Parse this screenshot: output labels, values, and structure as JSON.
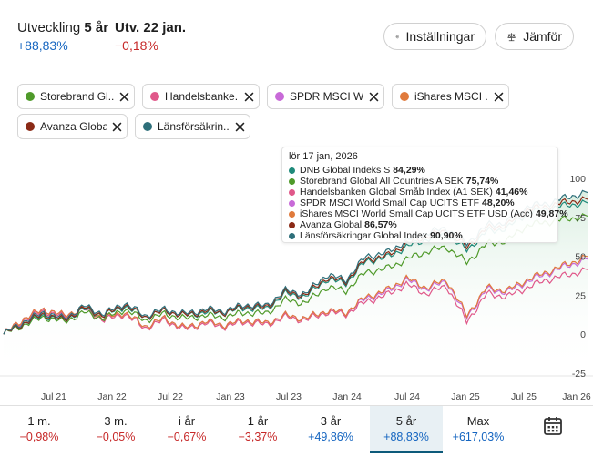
{
  "header": {
    "development_label": "Utveckling",
    "development_period": "5 år",
    "development_value": "+88,83%",
    "daily_label": "Utv. 22 jan.",
    "daily_value": "−0,18%",
    "settings_label": "Inställningar",
    "compare_label": "Jämför"
  },
  "chips": [
    {
      "label": "Storebrand Gl...",
      "color": "#4f9a2a"
    },
    {
      "label": "Handelsbanke...",
      "color": "#e0588a"
    },
    {
      "label": "SPDR MSCI W...",
      "color": "#c86ad8"
    },
    {
      "label": "iShares MSCI ...",
      "color": "#e07a3c"
    },
    {
      "label": "Avanza Global",
      "color": "#8b2a16"
    },
    {
      "label": "Länsförsäkrin...",
      "color": "#2e6f7a"
    }
  ],
  "tooltip": {
    "date": "lör 17 jan, 2026",
    "rows": [
      {
        "name": "DNB Global Indeks S",
        "value": "84,29%",
        "color": "#1f8a7a"
      },
      {
        "name": "Storebrand Global All Countries A SEK",
        "value": "75,74%",
        "color": "#4f9a2a"
      },
      {
        "name": "Handelsbanken Global Småb Index (A1 SEK)",
        "value": "41,46%",
        "color": "#e0588a"
      },
      {
        "name": "SPDR MSCI World Small Cap UCITS ETF",
        "value": "48,20%",
        "color": "#c86ad8"
      },
      {
        "name": "iShares MSCI World Small Cap UCITS ETF USD (Acc)",
        "value": "49,87%",
        "color": "#e07a3c"
      },
      {
        "name": "Avanza Global",
        "value": "86,57%",
        "color": "#8b2a16"
      },
      {
        "name": "Länsförsäkringar Global Index",
        "value": "90,90%",
        "color": "#2e6f7a"
      }
    ]
  },
  "chart_data": {
    "type": "line",
    "x_tick_labels": [
      "Jul 21",
      "Jan 22",
      "Jul 22",
      "Jan 23",
      "Jul 23",
      "Jan 24",
      "Jul 24",
      "Jan 25",
      "Jul 25",
      "Jan 26"
    ],
    "y_tick_labels": [
      "100",
      "75",
      "50",
      "25",
      "0",
      "-25"
    ],
    "ylim": [
      -25,
      100
    ],
    "series": [
      {
        "name": "Länsförsäkringar Global Index",
        "color": "#2e6f7a",
        "values": [
          0,
          8,
          14,
          10,
          18,
          13,
          20,
          12,
          16,
          13,
          16,
          15,
          19,
          18,
          28,
          26,
          38,
          35,
          50,
          52,
          60,
          65,
          68,
          58,
          70,
          72,
          82,
          84,
          88,
          90.9
        ]
      },
      {
        "name": "Avanza Global",
        "color": "#8b2a16",
        "values": [
          0,
          7,
          13,
          9,
          17,
          12,
          19,
          11,
          15,
          12,
          15,
          14,
          18,
          17,
          27,
          25,
          36,
          34,
          48,
          50,
          58,
          63,
          66,
          56,
          68,
          70,
          80,
          82,
          85,
          86.57
        ]
      },
      {
        "name": "DNB Global Indeks S",
        "color": "#1f8a7a",
        "values": [
          0,
          7,
          12,
          9,
          16,
          12,
          18,
          11,
          15,
          12,
          14,
          14,
          17,
          16,
          26,
          24,
          35,
          33,
          47,
          49,
          56,
          61,
          64,
          54,
          66,
          68,
          78,
          80,
          83,
          84.29
        ]
      },
      {
        "name": "Storebrand Global All Countries A SEK",
        "color": "#4f9a2a",
        "values": [
          0,
          6,
          11,
          8,
          14,
          10,
          16,
          9,
          13,
          10,
          12,
          11,
          14,
          13,
          22,
          20,
          30,
          28,
          40,
          42,
          48,
          53,
          56,
          46,
          58,
          60,
          70,
          72,
          74,
          75.74
        ]
      },
      {
        "name": "iShares MSCI World Small Cap UCITS ETF USD (Acc)",
        "color": "#e07a3c",
        "values": [
          0,
          10,
          16,
          12,
          17,
          10,
          14,
          5,
          10,
          4,
          8,
          6,
          9,
          7,
          12,
          10,
          15,
          14,
          24,
          28,
          36,
          30,
          35,
          12,
          30,
          28,
          35,
          40,
          45,
          49.87
        ]
      },
      {
        "name": "SPDR MSCI World Small Cap UCITS ETF",
        "color": "#c86ad8",
        "values": [
          0,
          10,
          16,
          12,
          17,
          10,
          14,
          5,
          10,
          4,
          8,
          6,
          9,
          7,
          12,
          10,
          15,
          14,
          23,
          27,
          35,
          29,
          34,
          11,
          29,
          27,
          34,
          39,
          44,
          48.2
        ]
      },
      {
        "name": "Handelsbanken Global Småb Index (A1 SEK)",
        "color": "#e0588a",
        "values": [
          0,
          9,
          15,
          11,
          16,
          9,
          13,
          4,
          9,
          3,
          7,
          5,
          8,
          6,
          11,
          9,
          14,
          13,
          21,
          25,
          32,
          26,
          31,
          8,
          26,
          24,
          30,
          35,
          38,
          41.46
        ]
      }
    ]
  },
  "periods": [
    {
      "label": "1 m.",
      "value": "−0,98%",
      "sign": "neg"
    },
    {
      "label": "3 m.",
      "value": "−0,05%",
      "sign": "neg"
    },
    {
      "label": "i år",
      "value": "−0,67%",
      "sign": "neg"
    },
    {
      "label": "1 år",
      "value": "−3,37%",
      "sign": "neg"
    },
    {
      "label": "3 år",
      "value": "+49,86%",
      "sign": "pos"
    },
    {
      "label": "5 år",
      "value": "+88,83%",
      "sign": "pos",
      "active": true
    },
    {
      "label": "Max",
      "value": "+617,03%",
      "sign": "pos"
    }
  ]
}
